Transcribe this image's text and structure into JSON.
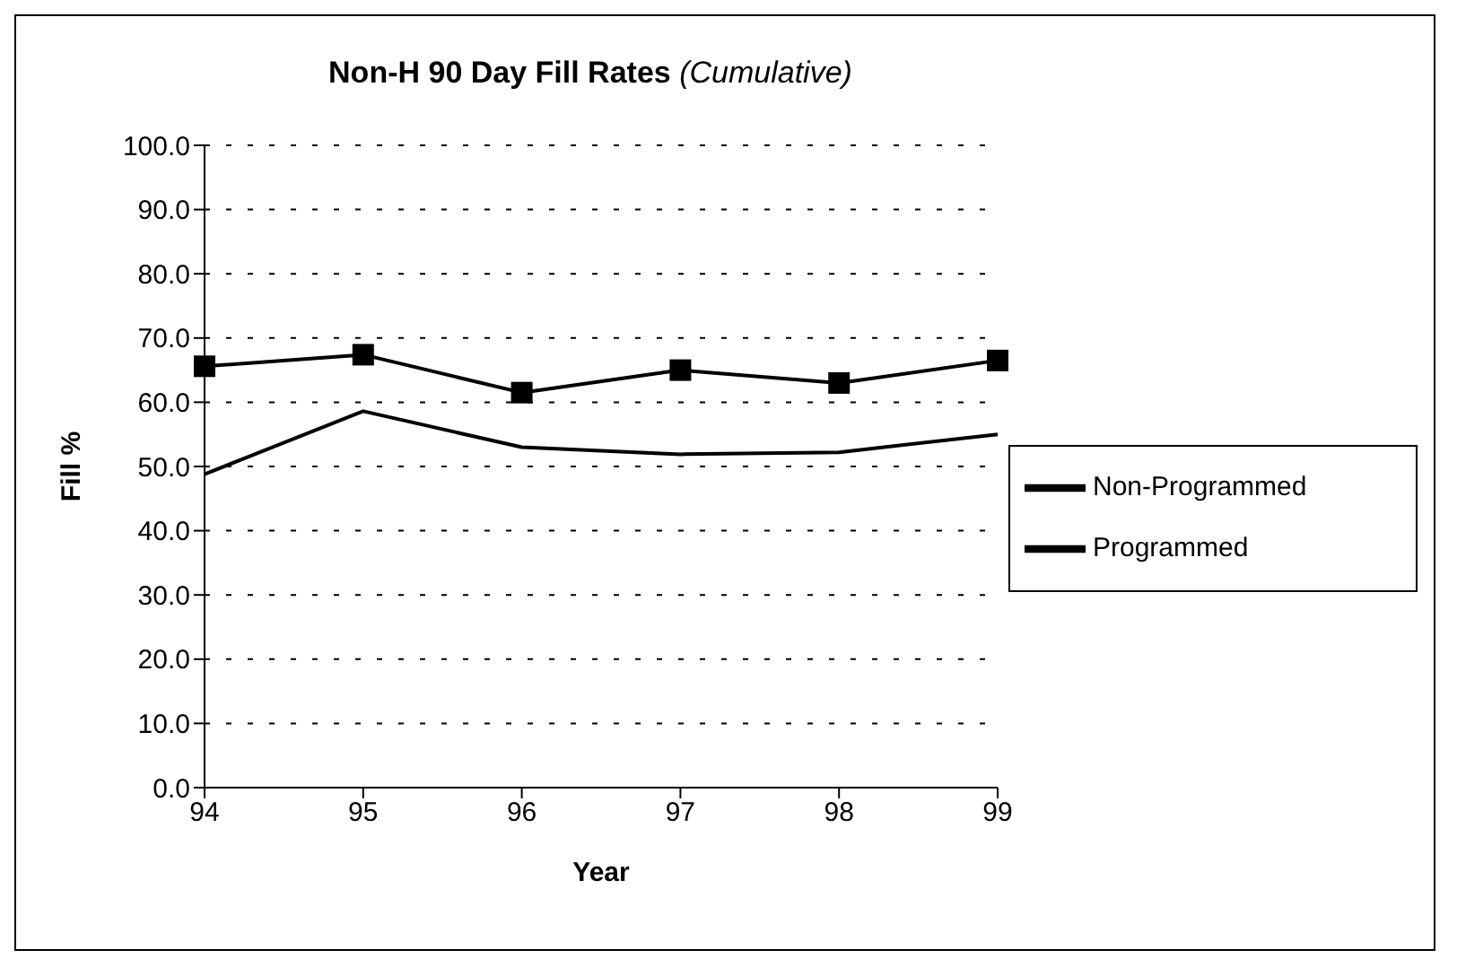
{
  "chart_data": {
    "type": "line",
    "title": "Non-H 90 Day Fill Rates",
    "subtitle": "(Cumulative)",
    "xlabel": "Year",
    "ylabel": "Fill %",
    "categories": [
      "94",
      "95",
      "96",
      "97",
      "98",
      "99"
    ],
    "series": [
      {
        "name": "Programmed",
        "color": "#000000",
        "marker": "square",
        "values": [
          65.6,
          67.4,
          61.5,
          65.0,
          63.0,
          66.5
        ]
      },
      {
        "name": "Non-Programmed",
        "color": "#000000",
        "marker": "none",
        "values": [
          48.8,
          58.6,
          53.0,
          51.9,
          52.2,
          55.0
        ]
      }
    ],
    "ylim": [
      0,
      100
    ],
    "yticks": [
      {
        "value": 0,
        "label": "0.0"
      },
      {
        "value": 10,
        "label": "10.0"
      },
      {
        "value": 20,
        "label": "20.0"
      },
      {
        "value": 30,
        "label": "30.0"
      },
      {
        "value": 40,
        "label": "40.0"
      },
      {
        "value": 50,
        "label": "50.0"
      },
      {
        "value": 60,
        "label": "60.0"
      },
      {
        "value": 70,
        "label": "70.0"
      },
      {
        "value": 80,
        "label": "80.0"
      },
      {
        "value": 90,
        "label": "90.0"
      },
      {
        "value": 100,
        "label": "100.0"
      }
    ],
    "grid": "y",
    "legend": "right"
  }
}
